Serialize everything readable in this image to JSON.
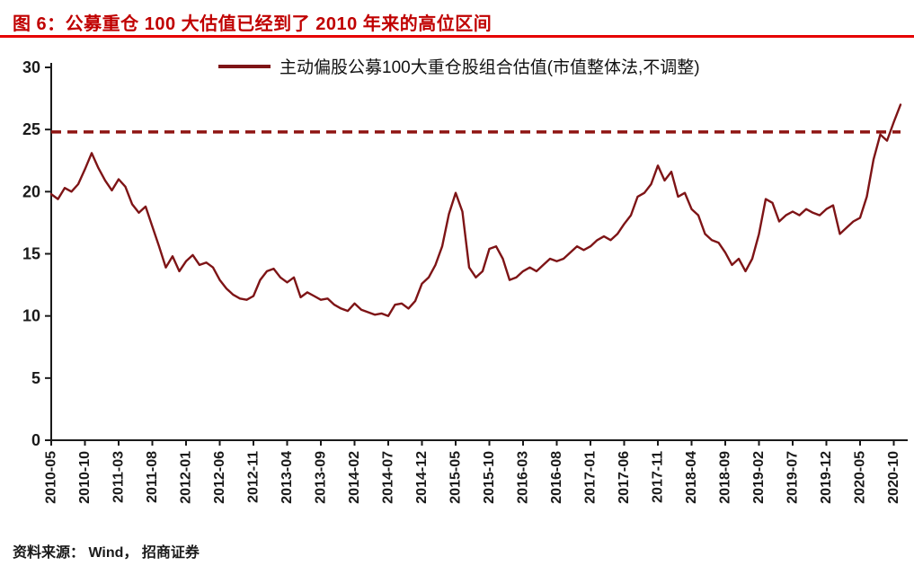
{
  "header": {
    "title": "图 6：公募重仓 100 大估值已经到了 2010 年来的高位区间"
  },
  "legend": {
    "label": "主动偏股公募100大重仓股组合估值(市值整体法,不调整)"
  },
  "footer": {
    "source": "资料来源：  Wind，  招商证券"
  },
  "colors": {
    "title": "#c00000",
    "title_rule": "#e60000",
    "series": "#7e1416",
    "reference": "#8f1513",
    "axis": "#1a1a1a",
    "tick_text": "#1a1a1a"
  },
  "chart_data": {
    "type": "line",
    "title": "公募重仓100大估值已经到了2010年来的高位区间",
    "legend_entries": [
      "主动偏股公募100大重仓股组合估值(市值整体法,不调整)"
    ],
    "legend_position": "top",
    "grid": false,
    "ylim": [
      0,
      30
    ],
    "yticks": [
      0,
      5,
      10,
      15,
      20,
      25,
      30
    ],
    "reference_line": 24.8,
    "xtick_labels": [
      "2010-05",
      "2010-10",
      "2011-03",
      "2011-08",
      "2012-01",
      "2012-06",
      "2012-11",
      "2013-04",
      "2013-09",
      "2014-02",
      "2014-07",
      "2014-12",
      "2015-05",
      "2015-10",
      "2016-03",
      "2016-08",
      "2017-01",
      "2017-06",
      "2017-11",
      "2018-04",
      "2018-09",
      "2019-02",
      "2019-07",
      "2019-12",
      "2020-05",
      "2020-10"
    ],
    "xtick_step": 5,
    "x": [
      "2010-05",
      "2010-06",
      "2010-07",
      "2010-08",
      "2010-09",
      "2010-10",
      "2010-11",
      "2010-12",
      "2011-01",
      "2011-02",
      "2011-03",
      "2011-04",
      "2011-05",
      "2011-06",
      "2011-07",
      "2011-08",
      "2011-09",
      "2011-10",
      "2011-11",
      "2011-12",
      "2012-01",
      "2012-02",
      "2012-03",
      "2012-04",
      "2012-05",
      "2012-06",
      "2012-07",
      "2012-08",
      "2012-09",
      "2012-10",
      "2012-11",
      "2012-12",
      "2013-01",
      "2013-02",
      "2013-03",
      "2013-04",
      "2013-05",
      "2013-06",
      "2013-07",
      "2013-08",
      "2013-09",
      "2013-10",
      "2013-11",
      "2013-12",
      "2014-01",
      "2014-02",
      "2014-03",
      "2014-04",
      "2014-05",
      "2014-06",
      "2014-07",
      "2014-08",
      "2014-09",
      "2014-10",
      "2014-11",
      "2014-12",
      "2015-01",
      "2015-02",
      "2015-03",
      "2015-04",
      "2015-05",
      "2015-06",
      "2015-07",
      "2015-08",
      "2015-09",
      "2015-10",
      "2015-11",
      "2015-12",
      "2016-01",
      "2016-02",
      "2016-03",
      "2016-04",
      "2016-05",
      "2016-06",
      "2016-07",
      "2016-08",
      "2016-09",
      "2016-10",
      "2016-11",
      "2016-12",
      "2017-01",
      "2017-02",
      "2017-03",
      "2017-04",
      "2017-05",
      "2017-06",
      "2017-07",
      "2017-08",
      "2017-09",
      "2017-10",
      "2017-11",
      "2017-12",
      "2018-01",
      "2018-02",
      "2018-03",
      "2018-04",
      "2018-05",
      "2018-06",
      "2018-07",
      "2018-08",
      "2018-09",
      "2018-10",
      "2018-11",
      "2018-12",
      "2019-01",
      "2019-02",
      "2019-03",
      "2019-04",
      "2019-05",
      "2019-06",
      "2019-07",
      "2019-08",
      "2019-09",
      "2019-10",
      "2019-11",
      "2019-12",
      "2020-01",
      "2020-02",
      "2020-03",
      "2020-04",
      "2020-05",
      "2020-06",
      "2020-07",
      "2020-08",
      "2020-09",
      "2020-10",
      "2020-11"
    ],
    "values": [
      19.8,
      19.4,
      20.3,
      20.0,
      20.6,
      21.8,
      23.1,
      21.9,
      20.9,
      20.1,
      21.0,
      20.4,
      19.0,
      18.3,
      18.8,
      17.2,
      15.6,
      13.9,
      14.8,
      13.6,
      14.4,
      14.9,
      14.1,
      14.3,
      13.9,
      12.9,
      12.2,
      11.7,
      11.4,
      11.3,
      11.6,
      12.9,
      13.6,
      13.8,
      13.1,
      12.7,
      13.1,
      11.5,
      11.9,
      11.6,
      11.3,
      11.4,
      10.9,
      10.6,
      10.4,
      11.0,
      10.5,
      10.3,
      10.1,
      10.2,
      10.0,
      10.9,
      11.0,
      10.6,
      11.2,
      12.6,
      13.1,
      14.1,
      15.6,
      18.2,
      19.9,
      18.4,
      13.9,
      13.1,
      13.6,
      15.4,
      15.6,
      14.6,
      12.9,
      13.1,
      13.6,
      13.9,
      13.6,
      14.1,
      14.6,
      14.4,
      14.6,
      15.1,
      15.6,
      15.3,
      15.6,
      16.1,
      16.4,
      16.1,
      16.6,
      17.4,
      18.1,
      19.6,
      19.9,
      20.6,
      22.1,
      20.9,
      21.6,
      19.6,
      19.9,
      18.6,
      18.1,
      16.6,
      16.1,
      15.9,
      15.1,
      14.1,
      14.6,
      13.6,
      14.6,
      16.6,
      19.4,
      19.1,
      17.6,
      18.1,
      18.4,
      18.1,
      18.6,
      18.3,
      18.1,
      18.6,
      18.9,
      16.6,
      17.1,
      17.6,
      17.9,
      19.6,
      22.6,
      24.6,
      24.1,
      25.6,
      27.0
    ]
  }
}
